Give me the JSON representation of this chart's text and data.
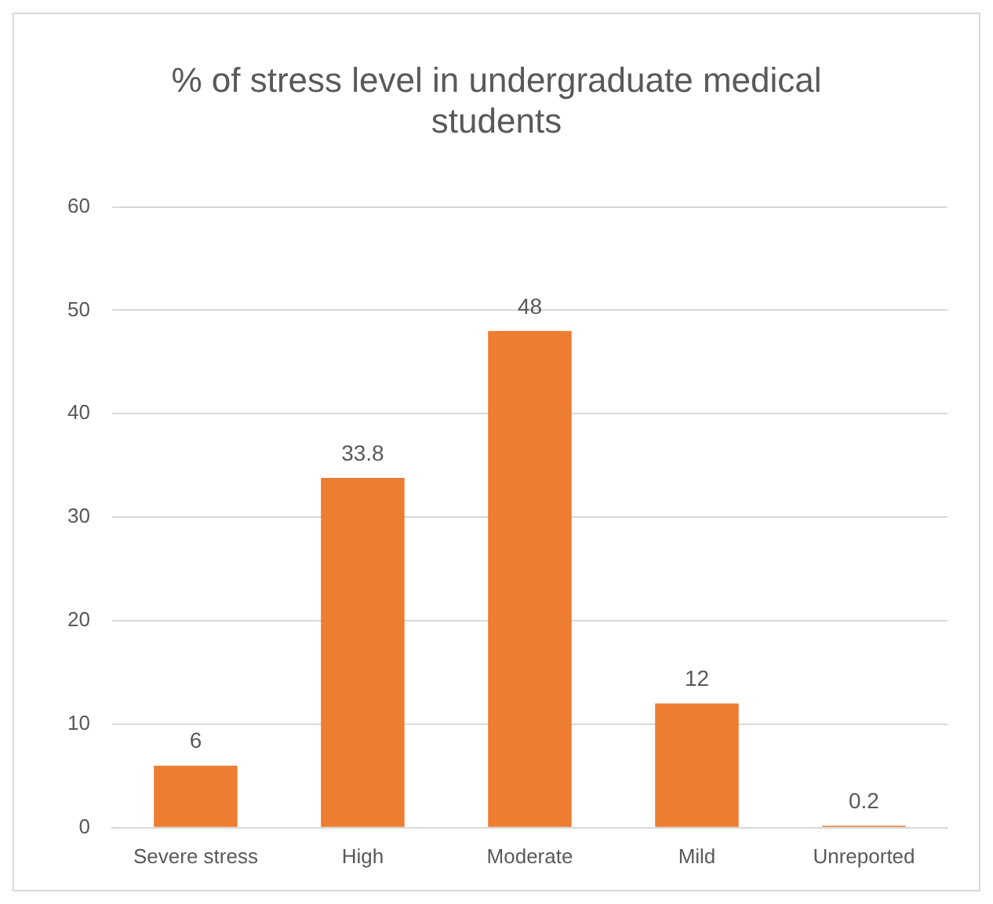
{
  "chart_data": {
    "type": "bar",
    "title": "% of stress level in undergraduate medical students",
    "categories": [
      "Severe stress",
      "High",
      "Moderate",
      "Mild",
      "Unreported"
    ],
    "values": [
      6,
      33.8,
      48,
      12,
      0.2
    ],
    "color": "#ed7d31",
    "ylim": [
      0,
      60
    ],
    "yticks": [
      0,
      10,
      20,
      30,
      40,
      50,
      60
    ],
    "grid": "y",
    "data_labels": true
  }
}
